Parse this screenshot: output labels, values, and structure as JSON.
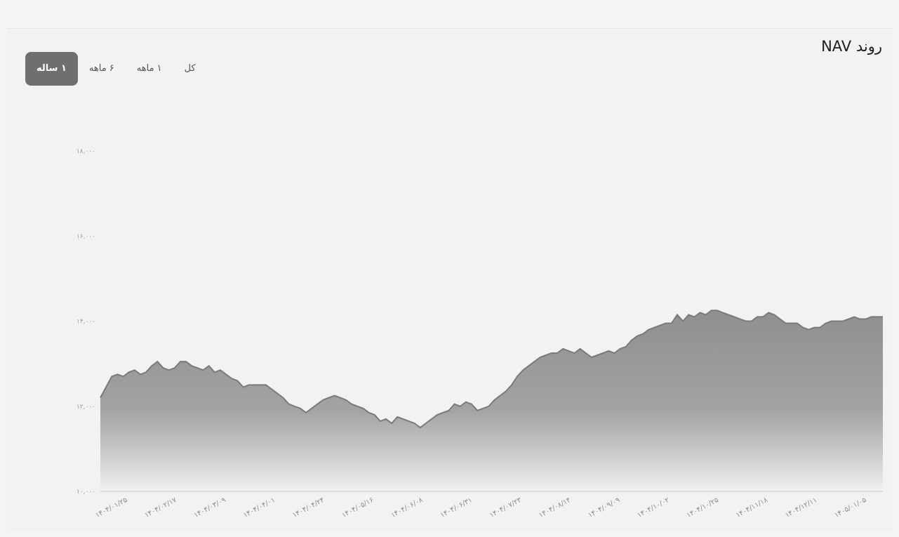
{
  "header": {
    "title": "روند NAV"
  },
  "range_tabs": [
    {
      "label": "کل",
      "active": false
    },
    {
      "label": "۱ ماهه",
      "active": false
    },
    {
      "label": "۶ ماهه",
      "active": false
    },
    {
      "label": "۱ ساله",
      "active": true
    }
  ],
  "colors": {
    "area_top": "#8a8a8a",
    "area_bottom": "#f2f2f1",
    "line": "#7a7a7a",
    "active_tab": "#6f6f6f"
  },
  "chart_data": {
    "type": "area",
    "title": "روند NAV",
    "y_ticks": [
      "۱۰,۰۰۰",
      "۱۲,۰۰۰",
      "۱۴,۰۰۰",
      "۱۶,۰۰۰",
      "۱۸,۰۰۰"
    ],
    "y_tick_values": [
      10000,
      12000,
      14000,
      16000,
      18000
    ],
    "ylim": [
      10000,
      18000
    ],
    "x_ticks": [
      "۱۴۰۴/۰۱/۲۵",
      "۱۴۰۴/۰۲/۱۷",
      "۱۴۰۴/۰۳/۰۹",
      "۱۴۰۴/۰۴/۰۱",
      "۱۴۰۴/۰۴/۲۴",
      "۱۴۰۴/۰۵/۱۶",
      "۱۴۰۴/۰۶/۰۸",
      "۱۴۰۴/۰۶/۳۱",
      "۱۴۰۴/۰۷/۲۳",
      "۱۴۰۴/۰۸/۱۴",
      "۱۴۰۴/۰۹/۰۹",
      "۱۴۰۴/۱۰/۰۲",
      "۱۴۰۴/۱۰/۲۵",
      "۱۴۰۴/۱۱/۱۸",
      "۱۴۰۴/۱۲/۱۱",
      "۱۴۰۵/۰۱/۰۵"
    ],
    "grid": false,
    "values": [
      12200,
      12450,
      12700,
      12750,
      12700,
      12800,
      12850,
      12750,
      12800,
      12950,
      13050,
      12900,
      12850,
      12900,
      13050,
      13050,
      12950,
      12900,
      12850,
      12950,
      12800,
      12850,
      12750,
      12650,
      12600,
      12450,
      12500,
      12500,
      12500,
      12500,
      12400,
      12300,
      12200,
      12050,
      12000,
      11950,
      11850,
      11950,
      12050,
      12150,
      12200,
      12250,
      12200,
      12150,
      12050,
      12000,
      11950,
      11850,
      11800,
      11650,
      11700,
      11600,
      11750,
      11700,
      11650,
      11600,
      11500,
      11600,
      11700,
      11800,
      11850,
      11900,
      12050,
      12000,
      12100,
      12050,
      11900,
      11950,
      12000,
      12150,
      12250,
      12350,
      12500,
      12700,
      12850,
      12950,
      13050,
      13150,
      13200,
      13250,
      13250,
      13350,
      13300,
      13250,
      13350,
      13250,
      13150,
      13200,
      13250,
      13300,
      13250,
      13350,
      13400,
      13550,
      13650,
      13700,
      13800,
      13850,
      13900,
      13950,
      13950,
      14150,
      14000,
      14150,
      14100,
      14200,
      14150,
      14250,
      14250,
      14200,
      14150,
      14100,
      14050,
      14000,
      14000,
      14100,
      14100,
      14200,
      14150,
      14050,
      13950,
      13950,
      13950,
      13850,
      13800,
      13850,
      13850,
      13950,
      14000,
      14000,
      14000,
      14050,
      14100,
      14050,
      14050,
      14100,
      14100,
      14100
    ]
  }
}
